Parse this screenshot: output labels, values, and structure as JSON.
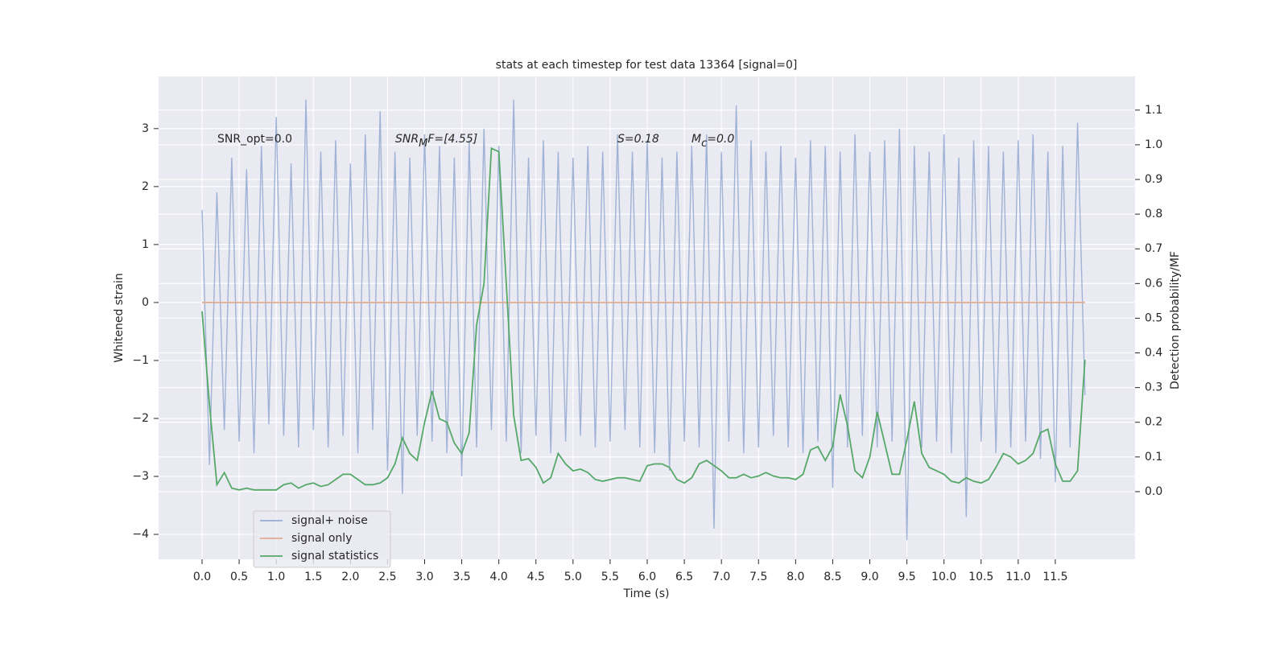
{
  "chart_data": {
    "type": "line",
    "title": "stats at each timestep for test data 13364 [signal=0]",
    "x_label": "Time (s)",
    "y_label": "Whitened strain",
    "y2_label": "Detection probability/MF",
    "annotations": [
      "SNR_opt=0.0",
      "SNR_MF=[4.55]",
      "S=0.18",
      "M_c=0.0"
    ],
    "x": [
      0,
      0.1,
      0.2,
      0.3,
      0.4,
      0.5,
      0.6,
      0.7,
      0.8,
      0.9,
      1,
      1.1,
      1.2,
      1.3,
      1.4,
      1.5,
      1.6,
      1.7,
      1.8,
      1.9,
      2,
      2.1,
      2.2,
      2.3,
      2.4,
      2.5,
      2.6,
      2.7,
      2.8,
      2.9,
      3,
      3.1,
      3.2,
      3.3,
      3.4,
      3.5,
      3.6,
      3.7,
      3.8,
      3.9,
      4,
      4.1,
      4.2,
      4.3,
      4.4,
      4.5,
      4.6,
      4.7,
      4.8,
      4.9,
      5,
      5.1,
      5.2,
      5.3,
      5.4,
      5.5,
      5.6,
      5.7,
      5.8,
      5.9,
      6,
      6.1,
      6.2,
      6.3,
      6.4,
      6.5,
      6.6,
      6.7,
      6.8,
      6.9,
      7,
      7.1,
      7.2,
      7.3,
      7.4,
      7.5,
      7.6,
      7.7,
      7.8,
      7.9,
      8,
      8.1,
      8.2,
      8.3,
      8.4,
      8.5,
      8.6,
      8.7,
      8.8,
      8.9,
      9,
      9.1,
      9.2,
      9.3,
      9.4,
      9.5,
      9.6,
      9.7,
      9.8,
      9.9,
      10,
      10.1,
      10.2,
      10.3,
      10.4,
      10.5,
      10.6,
      10.7,
      10.8,
      10.9,
      11,
      11.1,
      11.2,
      11.3,
      11.4,
      11.5,
      11.6,
      11.7,
      11.8,
      11.9
    ],
    "series": [
      {
        "name": "signal+ noise",
        "color": "#98acd2",
        "values": [
          1.6,
          -2.8,
          1.9,
          -2.2,
          2.5,
          -2.4,
          2.3,
          -2.6,
          2.7,
          -2.1,
          3.2,
          -2.3,
          2.4,
          -2.5,
          3.5,
          -2.2,
          2.6,
          -2.5,
          2.8,
          -2.3,
          2.4,
          -2.6,
          2.9,
          -2.2,
          3.3,
          -2.9,
          2.6,
          -3.3,
          2.5,
          -2.3,
          2.9,
          -2.4,
          2.7,
          -2.6,
          2.5,
          -3.0,
          2.8,
          -2.5,
          3.0,
          -2.2,
          2.7,
          -2.4,
          3.5,
          -2.6,
          2.5,
          -2.3,
          2.8,
          -2.6,
          2.6,
          -2.4,
          2.5,
          -2.3,
          2.7,
          -2.5,
          2.6,
          -2.4,
          2.9,
          -2.2,
          2.6,
          -2.5,
          2.8,
          -2.6,
          2.5,
          -2.9,
          2.6,
          -2.4,
          2.7,
          -2.5,
          2.9,
          -3.9,
          2.6,
          -2.4,
          3.4,
          -2.6,
          2.8,
          -2.5,
          2.6,
          -2.3,
          2.7,
          -2.5,
          2.5,
          -2.6,
          2.8,
          -2.4,
          2.7,
          -3.2,
          2.6,
          -2.5,
          2.9,
          -2.3,
          2.6,
          -2.5,
          2.8,
          -2.4,
          3.0,
          -4.1,
          2.7,
          -2.5,
          2.6,
          -2.4,
          2.9,
          -2.6,
          2.5,
          -3.7,
          2.8,
          -2.4,
          2.7,
          -2.6,
          2.6,
          -2.5,
          2.8,
          -2.4,
          2.9,
          -2.7,
          2.6,
          -3.1,
          2.7,
          -2.5,
          3.1,
          -1.6
        ]
      },
      {
        "name": "signal only",
        "color": "#e2ad91",
        "values": [
          0,
          0,
          0,
          0,
          0,
          0,
          0,
          0,
          0,
          0,
          0,
          0,
          0,
          0,
          0,
          0,
          0,
          0,
          0,
          0,
          0,
          0,
          0,
          0,
          0,
          0,
          0,
          0,
          0,
          0,
          0,
          0,
          0,
          0,
          0,
          0,
          0,
          0,
          0,
          0,
          0,
          0,
          0,
          0,
          0,
          0,
          0,
          0,
          0,
          0,
          0,
          0,
          0,
          0,
          0,
          0,
          0,
          0,
          0,
          0,
          0,
          0,
          0,
          0,
          0,
          0,
          0,
          0,
          0,
          0,
          0,
          0,
          0,
          0,
          0,
          0,
          0,
          0,
          0,
          0,
          0,
          0,
          0,
          0,
          0,
          0,
          0,
          0,
          0,
          0,
          0,
          0,
          0,
          0,
          0,
          0,
          0,
          0,
          0,
          0,
          0,
          0,
          0,
          0,
          0,
          0,
          0,
          0,
          0,
          0,
          0,
          0,
          0,
          0,
          0,
          0,
          0,
          0,
          0,
          0
        ]
      },
      {
        "name": "signal statistics",
        "color": "#55a868",
        "axis": "y2",
        "values": [
          0.52,
          0.25,
          0.02,
          0.055,
          0.01,
          0.005,
          0.01,
          0.005,
          0.005,
          0.005,
          0.005,
          0.02,
          0.025,
          0.01,
          0.02,
          0.025,
          0.015,
          0.02,
          0.035,
          0.05,
          0.05,
          0.035,
          0.02,
          0.02,
          0.025,
          0.04,
          0.08,
          0.155,
          0.11,
          0.09,
          0.2,
          0.29,
          0.21,
          0.2,
          0.14,
          0.11,
          0.17,
          0.48,
          0.6,
          0.99,
          0.98,
          0.6,
          0.22,
          0.09,
          0.095,
          0.07,
          0.025,
          0.04,
          0.11,
          0.08,
          0.06,
          0.065,
          0.055,
          0.035,
          0.03,
          0.035,
          0.04,
          0.04,
          0.035,
          0.03,
          0.075,
          0.08,
          0.08,
          0.07,
          0.035,
          0.025,
          0.04,
          0.08,
          0.09,
          0.075,
          0.06,
          0.04,
          0.04,
          0.05,
          0.04,
          0.045,
          0.055,
          0.045,
          0.04,
          0.04,
          0.035,
          0.05,
          0.12,
          0.13,
          0.09,
          0.13,
          0.28,
          0.19,
          0.06,
          0.04,
          0.1,
          0.23,
          0.14,
          0.05,
          0.05,
          0.15,
          0.26,
          0.11,
          0.07,
          0.06,
          0.05,
          0.03,
          0.025,
          0.04,
          0.03,
          0.025,
          0.035,
          0.07,
          0.11,
          0.1,
          0.08,
          0.09,
          0.11,
          0.17,
          0.18,
          0.08,
          0.03,
          0.03,
          0.06,
          0.38
        ]
      }
    ],
    "xlim": [
      -0.586,
      12.575
    ],
    "ylim": [
      -4.43,
      3.9
    ],
    "y2lim": [
      -0.195,
      1.197
    ],
    "xticks": [
      {
        "value": 0,
        "label": "0.0"
      },
      0.5,
      {
        "value": 1,
        "label": "1.0"
      },
      1.5,
      {
        "value": 2,
        "label": "2.0"
      },
      2.5,
      {
        "value": 3,
        "label": "3.0"
      },
      3.5,
      {
        "value": 4,
        "label": "4.0"
      },
      4.5,
      {
        "value": 5,
        "label": "5.0"
      },
      5.5,
      {
        "value": 6,
        "label": "6.0"
      },
      6.5,
      {
        "value": 7,
        "label": "7.0"
      },
      7.5,
      {
        "value": 8,
        "label": "8.0"
      },
      8.5,
      {
        "value": 9,
        "label": "9.0"
      },
      9.5,
      {
        "value": 10,
        "label": "10.0"
      },
      10.5,
      {
        "value": 11,
        "label": "11.0"
      },
      11.5
    ],
    "yticks": [
      {
        "value": -4,
        "label": "−4"
      },
      {
        "value": -3,
        "label": "−3"
      },
      {
        "value": -2,
        "label": "−2"
      },
      {
        "value": -1,
        "label": "−1"
      },
      0,
      1,
      2,
      3
    ],
    "y2ticks": [
      {
        "value": 0,
        "label": "0.0"
      },
      0.1,
      0.2,
      0.3,
      0.4,
      0.5,
      0.6,
      0.7,
      0.8,
      0.9,
      {
        "value": 1,
        "label": "1.0"
      },
      1.1
    ],
    "grid": true,
    "legend_position": "lower left"
  }
}
